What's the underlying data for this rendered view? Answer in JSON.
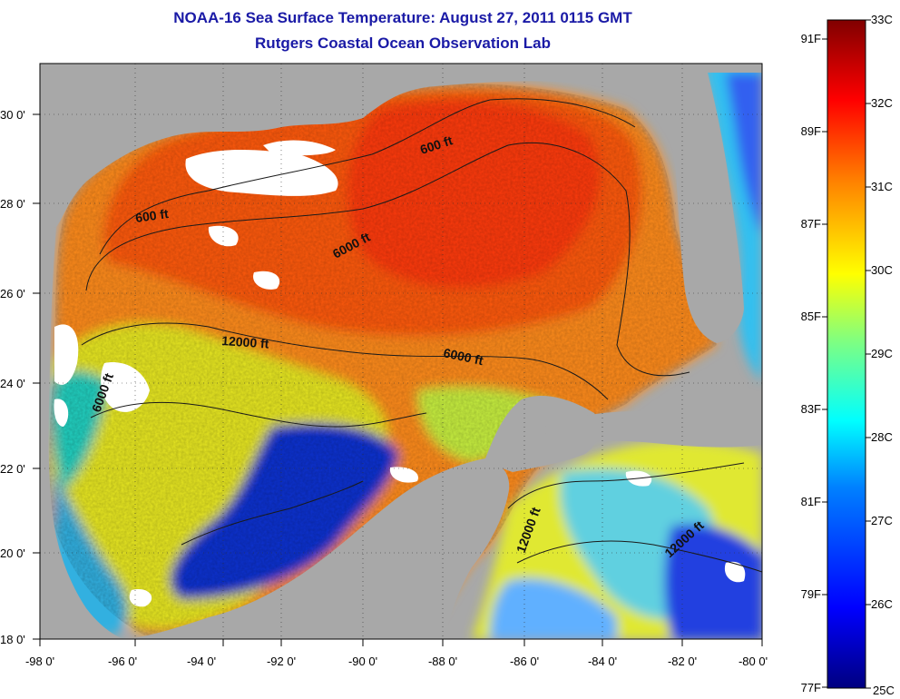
{
  "title_line1": "NOAA-16 Sea Surface Temperature:  August 27, 2011 0115 GMT",
  "title_line2": "Rutgers Coastal Ocean Observation Lab",
  "lat_ticks": [
    "18 0'",
    "20 0'",
    "22 0'",
    "24 0'",
    "26 0'",
    "28 0'",
    "30 0'"
  ],
  "lon_ticks": [
    "-98 0'",
    "-96 0'",
    "-94 0'",
    "-92 0'",
    "-90 0'",
    "-88 0'",
    "-86 0'",
    "-84 0'",
    "-82 0'",
    "-80 0'"
  ],
  "contour_labels": [
    "600 ft",
    "600 ft",
    "6000 ft",
    "6000 ft",
    "6000 ft",
    "12000 ft",
    "12000 ft",
    "12000 ft"
  ],
  "colorbar": {
    "celsius_labels": [
      "33C",
      "32C",
      "31C",
      "30C",
      "29C",
      "28C",
      "27C",
      "26C",
      "25C"
    ],
    "fahrenheit_labels": [
      "91F",
      "89F",
      "87F",
      "85F",
      "83F",
      "81F",
      "79F",
      "77F"
    ],
    "colors": [
      "#000080",
      "#0000ff",
      "#0080ff",
      "#00ffff",
      "#80ff80",
      "#ffff00",
      "#ff8000",
      "#ff0000",
      "#800000"
    ]
  },
  "colors": {
    "land": "#a8a8a8",
    "title": "#1a1aa6"
  }
}
